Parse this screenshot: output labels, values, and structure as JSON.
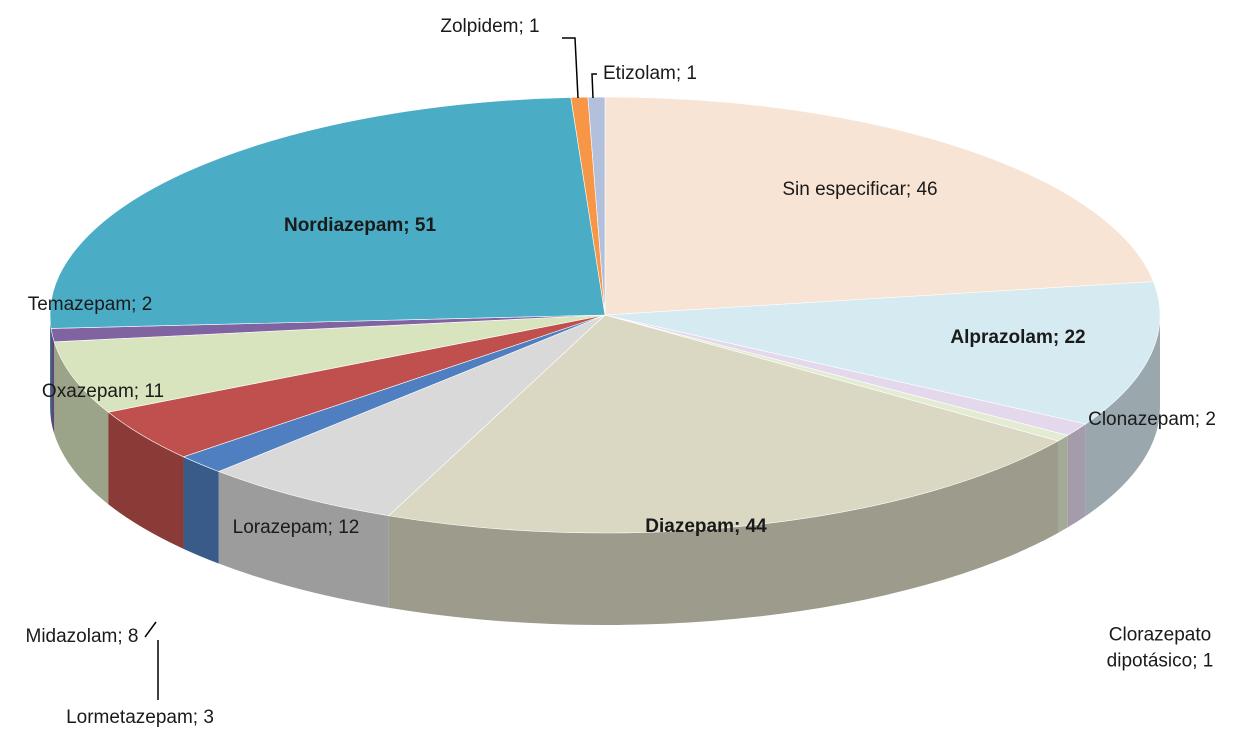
{
  "chart_data": {
    "type": "pie",
    "values": [
      46,
      22,
      2,
      1,
      44,
      12,
      3,
      8,
      11,
      2,
      51,
      1,
      1
    ],
    "value_labels": [
      "Sin especificar; 46",
      "Alprazolam; 22",
      "Clonazepam; 2",
      "Clorazepato dipotásico; 1",
      "Diazepam; 44",
      "Lorazepam; 12",
      "Lormetazepam; 3",
      "Midazolam; 8",
      "Oxazepam; 11",
      "Temazepam; 2",
      "Nordiazepam; 51",
      "Zolpidem; 1",
      "Etizolam; 1"
    ],
    "colors": [
      "#f8e4d4",
      "#d6eaf2",
      "#e4d9ec",
      "#e3ecd3",
      "#dad7c2",
      "#d9d9d9",
      "#4f7fc0",
      "#c0504d",
      "#d7e4bd",
      "#8064a2",
      "#4bacc6",
      "#f79646",
      "#b3c0dc"
    ]
  }
}
